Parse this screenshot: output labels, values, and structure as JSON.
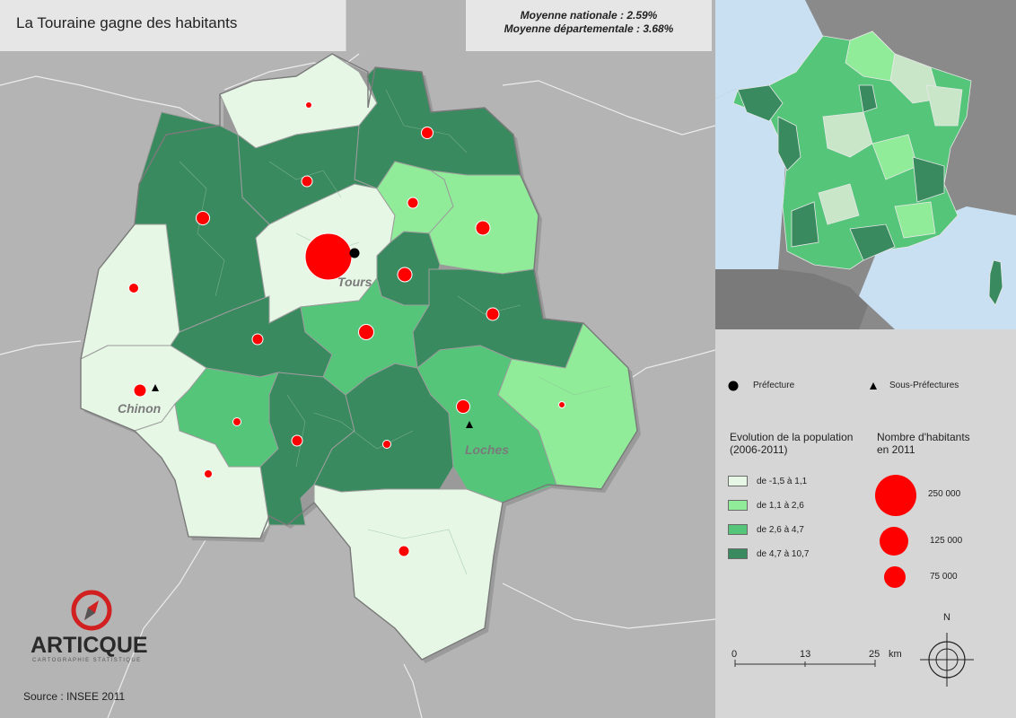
{
  "title": "La Touraine gagne des habitants",
  "averages": {
    "national": "Moyenne nationale : 2.59%",
    "departmental": "Moyenne départementale : 3.68%"
  },
  "towns": [
    "Tours",
    "Chinon",
    "Loches"
  ],
  "legend": {
    "prefecture": "Préfecture",
    "sous_prefectures": "Sous-Préfectures",
    "evolution_title": [
      "Evolution de la population",
      "(2006-2011)"
    ],
    "classes": [
      {
        "label": "de -1,5 à 1,1",
        "color": "#e6f7e6"
      },
      {
        "label": "de 1,1 à 2,6",
        "color": "#90ec98"
      },
      {
        "label": "de 2,6 à 4,7",
        "color": "#55c57a"
      },
      {
        "label": "de 4,7 à 10,7",
        "color": "#3a8a60"
      }
    ],
    "population_title": [
      "Nombre d'habitants",
      "en 2011"
    ],
    "sizes": [
      "250 000",
      "125 000",
      "75 000"
    ]
  },
  "scale": {
    "ticks": [
      "0",
      "13",
      "25"
    ],
    "unit": "km"
  },
  "north": "N",
  "logo": {
    "brand": "ARTICQUE",
    "tagline": "CARTOGRAPHIE STATISTIQUE"
  },
  "source": "Source : INSEE 2011",
  "colors": {
    "background": "#b4b4b4",
    "bubble": "#ff0000"
  }
}
